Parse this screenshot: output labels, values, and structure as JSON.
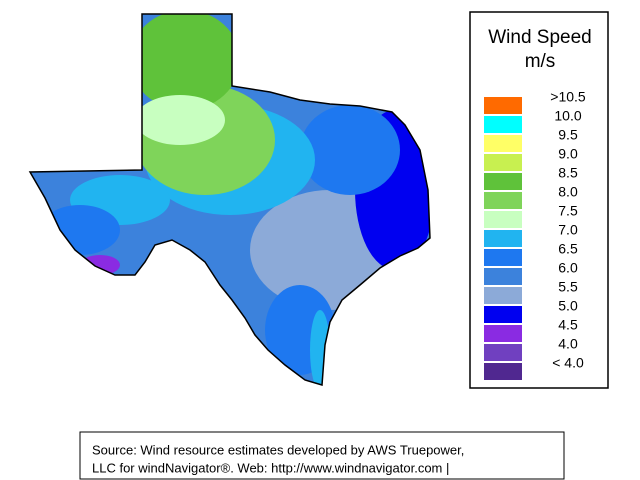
{
  "legend": {
    "title": "Wind Speed",
    "unit": "m/s",
    "labels": [
      ">10.5",
      "10.0",
      "9.5",
      "9.0",
      "8.5",
      "8.0",
      "7.5",
      "7.0",
      "6.5",
      "6.0",
      "5.5",
      "5.0",
      "4.5",
      "4.0",
      "< 4.0"
    ],
    "colors": [
      "#ff6a00",
      "#00ffff",
      "#ffff66",
      "#c8f050",
      "#5fc23a",
      "#7fd45a",
      "#c8ffc0",
      "#21b4f0",
      "#1e78f0",
      "#3c82dc",
      "#8caad8",
      "#0000f0",
      "#8a2be2",
      "#7040c0",
      "#502890"
    ]
  },
  "source": {
    "lines": [
      "Source: Wind resource estimates developed by AWS Truepower,",
      "LLC for windNavigator®. Web: http://www.windnavigator.com |"
    ]
  }
}
